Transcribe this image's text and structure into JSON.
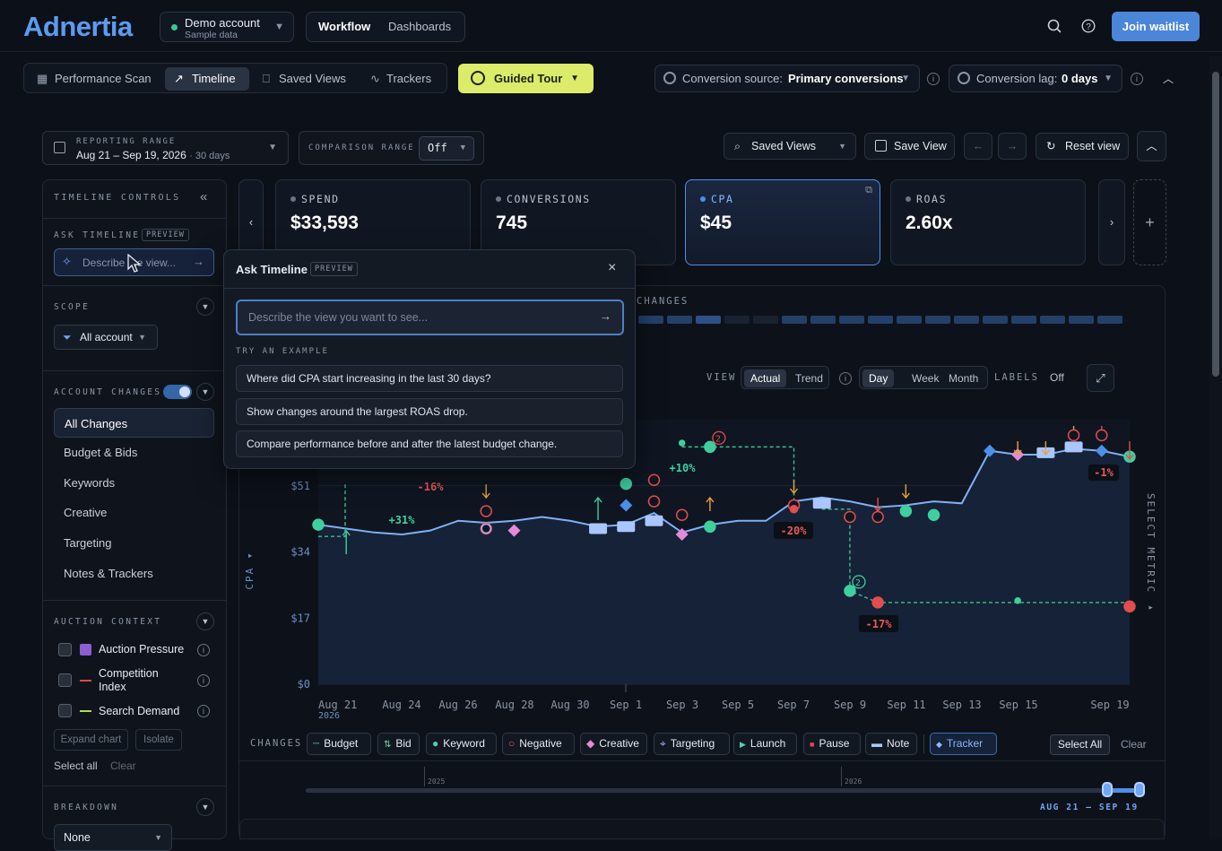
{
  "header": {
    "logo": "Adnertia",
    "account_name": "Demo account",
    "account_sub": "Sample data",
    "nav": [
      "Workflow",
      "Dashboards"
    ],
    "join": "Join waitlist"
  },
  "tabs": [
    "Performance Scan",
    "Timeline",
    "Saved Views",
    "Trackers"
  ],
  "guided_tour": "Guided Tour",
  "conversion_source": {
    "label": "Conversion source:",
    "value": "Primary conversions"
  },
  "conversion_lag": {
    "label": "Conversion lag:",
    "value": "0 days"
  },
  "reporting": {
    "label": "REPORTING RANGE",
    "range": "Aug 21 – Sep 19, 2026",
    "days": "· 30 days"
  },
  "comparison": {
    "label": "COMPARISON RANGE",
    "value": "Off"
  },
  "saved_views": "Saved Views",
  "save_view": "Save View",
  "reset_view": "Reset view",
  "left": {
    "title": "TIMELINE CONTROLS",
    "ask_label": "ASK TIMELINE",
    "preview": "PREVIEW",
    "ask_placeholder": "Describe the view...",
    "scope": "SCOPE",
    "scope_value": "All account",
    "account_changes": "ACCOUNT CHANGES",
    "items": [
      "All Changes",
      "Budget & Bids",
      "Keywords",
      "Creative",
      "Targeting",
      "Notes & Trackers"
    ],
    "auction": "AUCTION CONTEXT",
    "auction_items": [
      {
        "label": "Auction Pressure",
        "color": "#8b5fd1"
      },
      {
        "label": "Competition Index",
        "color": "#e04848"
      },
      {
        "label": "Search Demand",
        "color": "#a9e04a"
      }
    ],
    "expand_chart": "Expand chart",
    "isolate": "Isolate",
    "select_all": "Select all",
    "clear": "Clear",
    "breakdown": "BREAKDOWN",
    "breakdown_value": "None"
  },
  "kpis": [
    {
      "label": "SPEND",
      "value": "$33,593"
    },
    {
      "label": "CONVERSIONS",
      "value": "745"
    },
    {
      "label": "CPA",
      "value": "$45"
    },
    {
      "label": "ROAS",
      "value": "2.60x"
    }
  ],
  "changes_label": "CHANGES",
  "view": {
    "label": "VIEW",
    "actual": "Actual",
    "trend": "Trend",
    "day": "Day",
    "week": "Week",
    "month": "Month",
    "labels": "LABELS",
    "labels_value": "Off"
  },
  "select_metric": "SELECT METRIC",
  "chart_data": {
    "type": "line",
    "ylabel": "CPA",
    "y_ticks": [
      "$0",
      "$17",
      "$34",
      "$51"
    ],
    "ylim": [
      0,
      68
    ],
    "x_ticks": [
      "Aug 21",
      "Aug 24",
      "Aug 26",
      "Aug 28",
      "Aug 30",
      "Sep 1",
      "Sep 3",
      "Sep 5",
      "Sep 7",
      "Sep 9",
      "Sep 11",
      "Sep 13",
      "Sep 15",
      "Sep 19"
    ],
    "x_year": "2026",
    "series": [
      {
        "values": [
          41,
          40,
          39,
          38.5,
          39.5,
          42,
          41.5,
          42,
          43,
          42,
          40.5,
          41,
          44,
          39,
          41,
          42,
          42,
          47,
          48,
          47,
          45.5,
          46,
          47,
          46.5,
          60,
          59,
          59,
          60.5,
          60,
          58.5
        ]
      }
    ],
    "annotations": [
      "+31%",
      "-16%",
      "+10%",
      "-20%",
      "-17%",
      "-1%"
    ]
  },
  "legend": {
    "label": "CHANGES",
    "items": [
      "Budget",
      "Bid",
      "Keyword",
      "Negative",
      "Creative",
      "Targeting",
      "Launch",
      "Pause",
      "Note",
      "Tracker"
    ],
    "select_all": "Select All",
    "clear": "Clear"
  },
  "range_years": [
    "2025",
    "2026"
  ],
  "range_label": "AUG 21 – SEP 19",
  "popup": {
    "title": "Ask Timeline",
    "preview": "PREVIEW",
    "placeholder": "Describe the view you want to see...",
    "try": "TRY AN EXAMPLE",
    "examples": [
      "Where did CPA start increasing in the last 30 days?",
      "Show changes around the largest ROAS drop.",
      "Compare performance before and after the latest budget change."
    ]
  }
}
